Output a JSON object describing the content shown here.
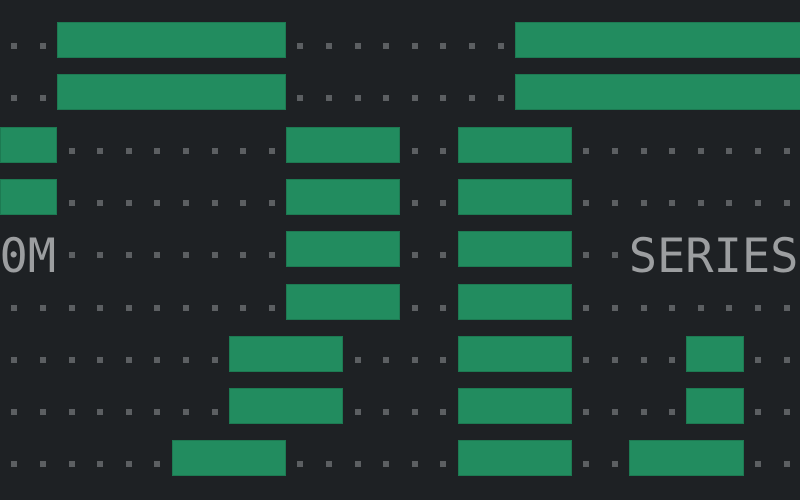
{
  "colors": {
    "background": "#1e2124",
    "bar": "#228c5f",
    "dot": "#5c5f62",
    "text": "#9c9ea0"
  },
  "rows": [
    [
      [
        "dot",
        2
      ],
      [
        "bar",
        8
      ],
      [
        "dot",
        8
      ],
      [
        "bar",
        10
      ]
    ],
    [
      [
        "dot",
        2
      ],
      [
        "bar",
        8
      ],
      [
        "dot",
        8
      ],
      [
        "bar",
        10
      ]
    ],
    [
      [
        "bar",
        2
      ],
      [
        "dot",
        8
      ],
      [
        "bar",
        4
      ],
      [
        "dot",
        2
      ],
      [
        "bar",
        4
      ],
      [
        "dot",
        8
      ]
    ],
    [
      [
        "bar",
        2
      ],
      [
        "dot",
        8
      ],
      [
        "bar",
        4
      ],
      [
        "dot",
        2
      ],
      [
        "bar",
        4
      ],
      [
        "dot",
        8
      ]
    ],
    [
      [
        "text",
        "0M"
      ],
      [
        "dot",
        8
      ],
      [
        "bar",
        4
      ],
      [
        "dot",
        2
      ],
      [
        "bar",
        4
      ],
      [
        "dot",
        2
      ],
      [
        "text",
        "SERIES"
      ]
    ],
    [
      [
        "dot",
        10
      ],
      [
        "bar",
        4
      ],
      [
        "dot",
        2
      ],
      [
        "bar",
        4
      ],
      [
        "dot",
        8
      ]
    ],
    [
      [
        "dot",
        8
      ],
      [
        "bar",
        4
      ],
      [
        "dot",
        4
      ],
      [
        "bar",
        4
      ],
      [
        "dot",
        4
      ],
      [
        "bar",
        2
      ],
      [
        "dot",
        2
      ]
    ],
    [
      [
        "dot",
        8
      ],
      [
        "bar",
        4
      ],
      [
        "dot",
        4
      ],
      [
        "bar",
        4
      ],
      [
        "dot",
        4
      ],
      [
        "bar",
        2
      ],
      [
        "dot",
        2
      ]
    ],
    [
      [
        "dot",
        6
      ],
      [
        "bar",
        4
      ],
      [
        "dot",
        6
      ],
      [
        "bar",
        4
      ],
      [
        "dot",
        2
      ],
      [
        "bar",
        4
      ],
      [
        "dot",
        2
      ]
    ]
  ]
}
